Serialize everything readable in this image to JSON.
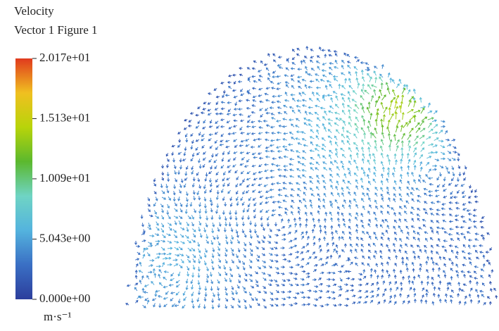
{
  "chart_data": {
    "type": "vector",
    "title": "Velocity",
    "subtitle": "Vector 1 Figure 1",
    "colorbar_label": "m·s⁻¹",
    "clim": [
      0,
      20.17
    ],
    "cticks": [
      {
        "value": 0,
        "label": "0.000e+00"
      },
      {
        "value": 5.043,
        "label": "5.043e+00"
      },
      {
        "value": 10.09,
        "label": "1.009e+01"
      },
      {
        "value": 15.13,
        "label": "1.513e+01"
      },
      {
        "value": 20.17,
        "label": "2.017e+01"
      }
    ],
    "colormap": [
      "#2c3e9c",
      "#3a6fc4",
      "#54b3de",
      "#6fd4c4",
      "#5bb82e",
      "#b8d40a",
      "#f0c020",
      "#e03a1e"
    ]
  }
}
